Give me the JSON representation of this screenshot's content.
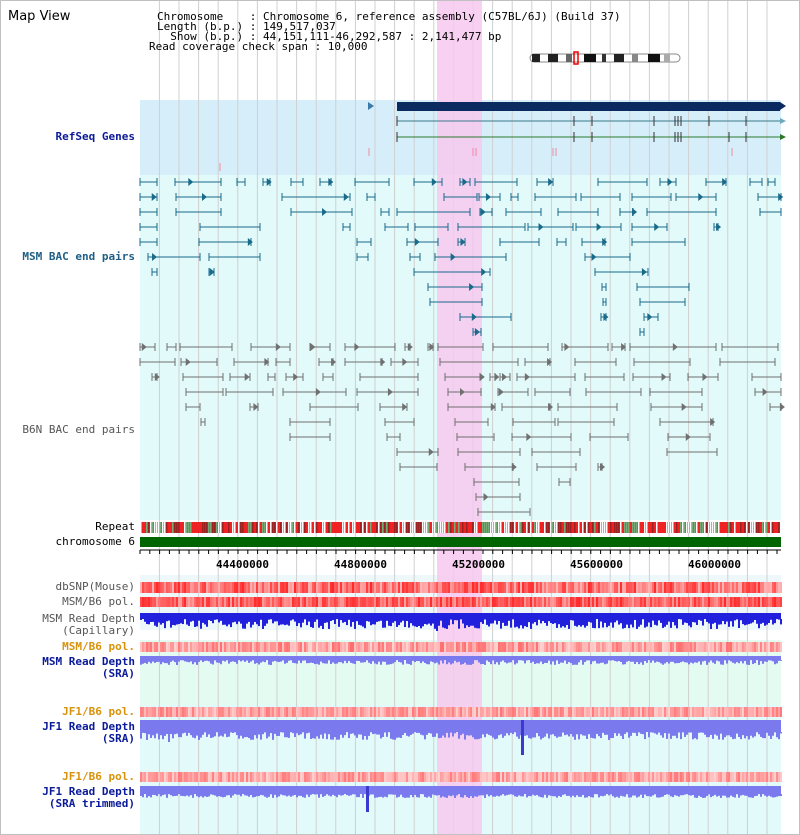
{
  "title": "Map View",
  "info": {
    "line1": "Chromosome    : Chromosome 6, reference assembly (C57BL/6J) (Build 37)",
    "line2": "Length (b.p.) : 149,517,037",
    "line3": "  Show (b.p.) : 44,151,111-46,292,587 : 2,141,477 bp",
    "line4": "Read coverage check span : 10,000"
  },
  "tracks": {
    "refseq": "RefSeq Genes",
    "msm_bac": "MSM BAC end pairs",
    "b6n_bac": "B6N BAC end pairs",
    "repeat": "Repeat",
    "chromosome": "chromosome 6",
    "dbsnp": "dbSNP(Mouse)",
    "msm_b6_pol": "MSM/B6 pol.",
    "msm_depth_cap": "MSM Read Depth\n(Capillary)",
    "msm_b6_pol2": "MSM/B6 pol.",
    "msm_depth_sra": "MSM Read Depth\n(SRA)",
    "jf1_b6_pol": "JF1/B6 pol.",
    "jf1_depth_sra": "JF1 Read Depth\n(SRA)",
    "jf1_b6_pol2": "JF1/B6 pol.",
    "jf1_depth_trim": "JF1 Read Depth\n(SRA trimmed)"
  },
  "axis_ticks": [
    "44400000",
    "44800000",
    "45200000",
    "45600000",
    "46000000"
  ],
  "colors": {
    "highlight": "#f7c8ef",
    "refseq_bg": "#d6eefa",
    "bac_bg": "#e2fafa",
    "msm_feature": "#1a6a8a",
    "b6n_feature": "#707070",
    "gene_dark": "#0b2a60",
    "chromosome_bar": "#006400",
    "depth_blue": "#2020dd",
    "depth_light": "#7a7aee"
  }
}
